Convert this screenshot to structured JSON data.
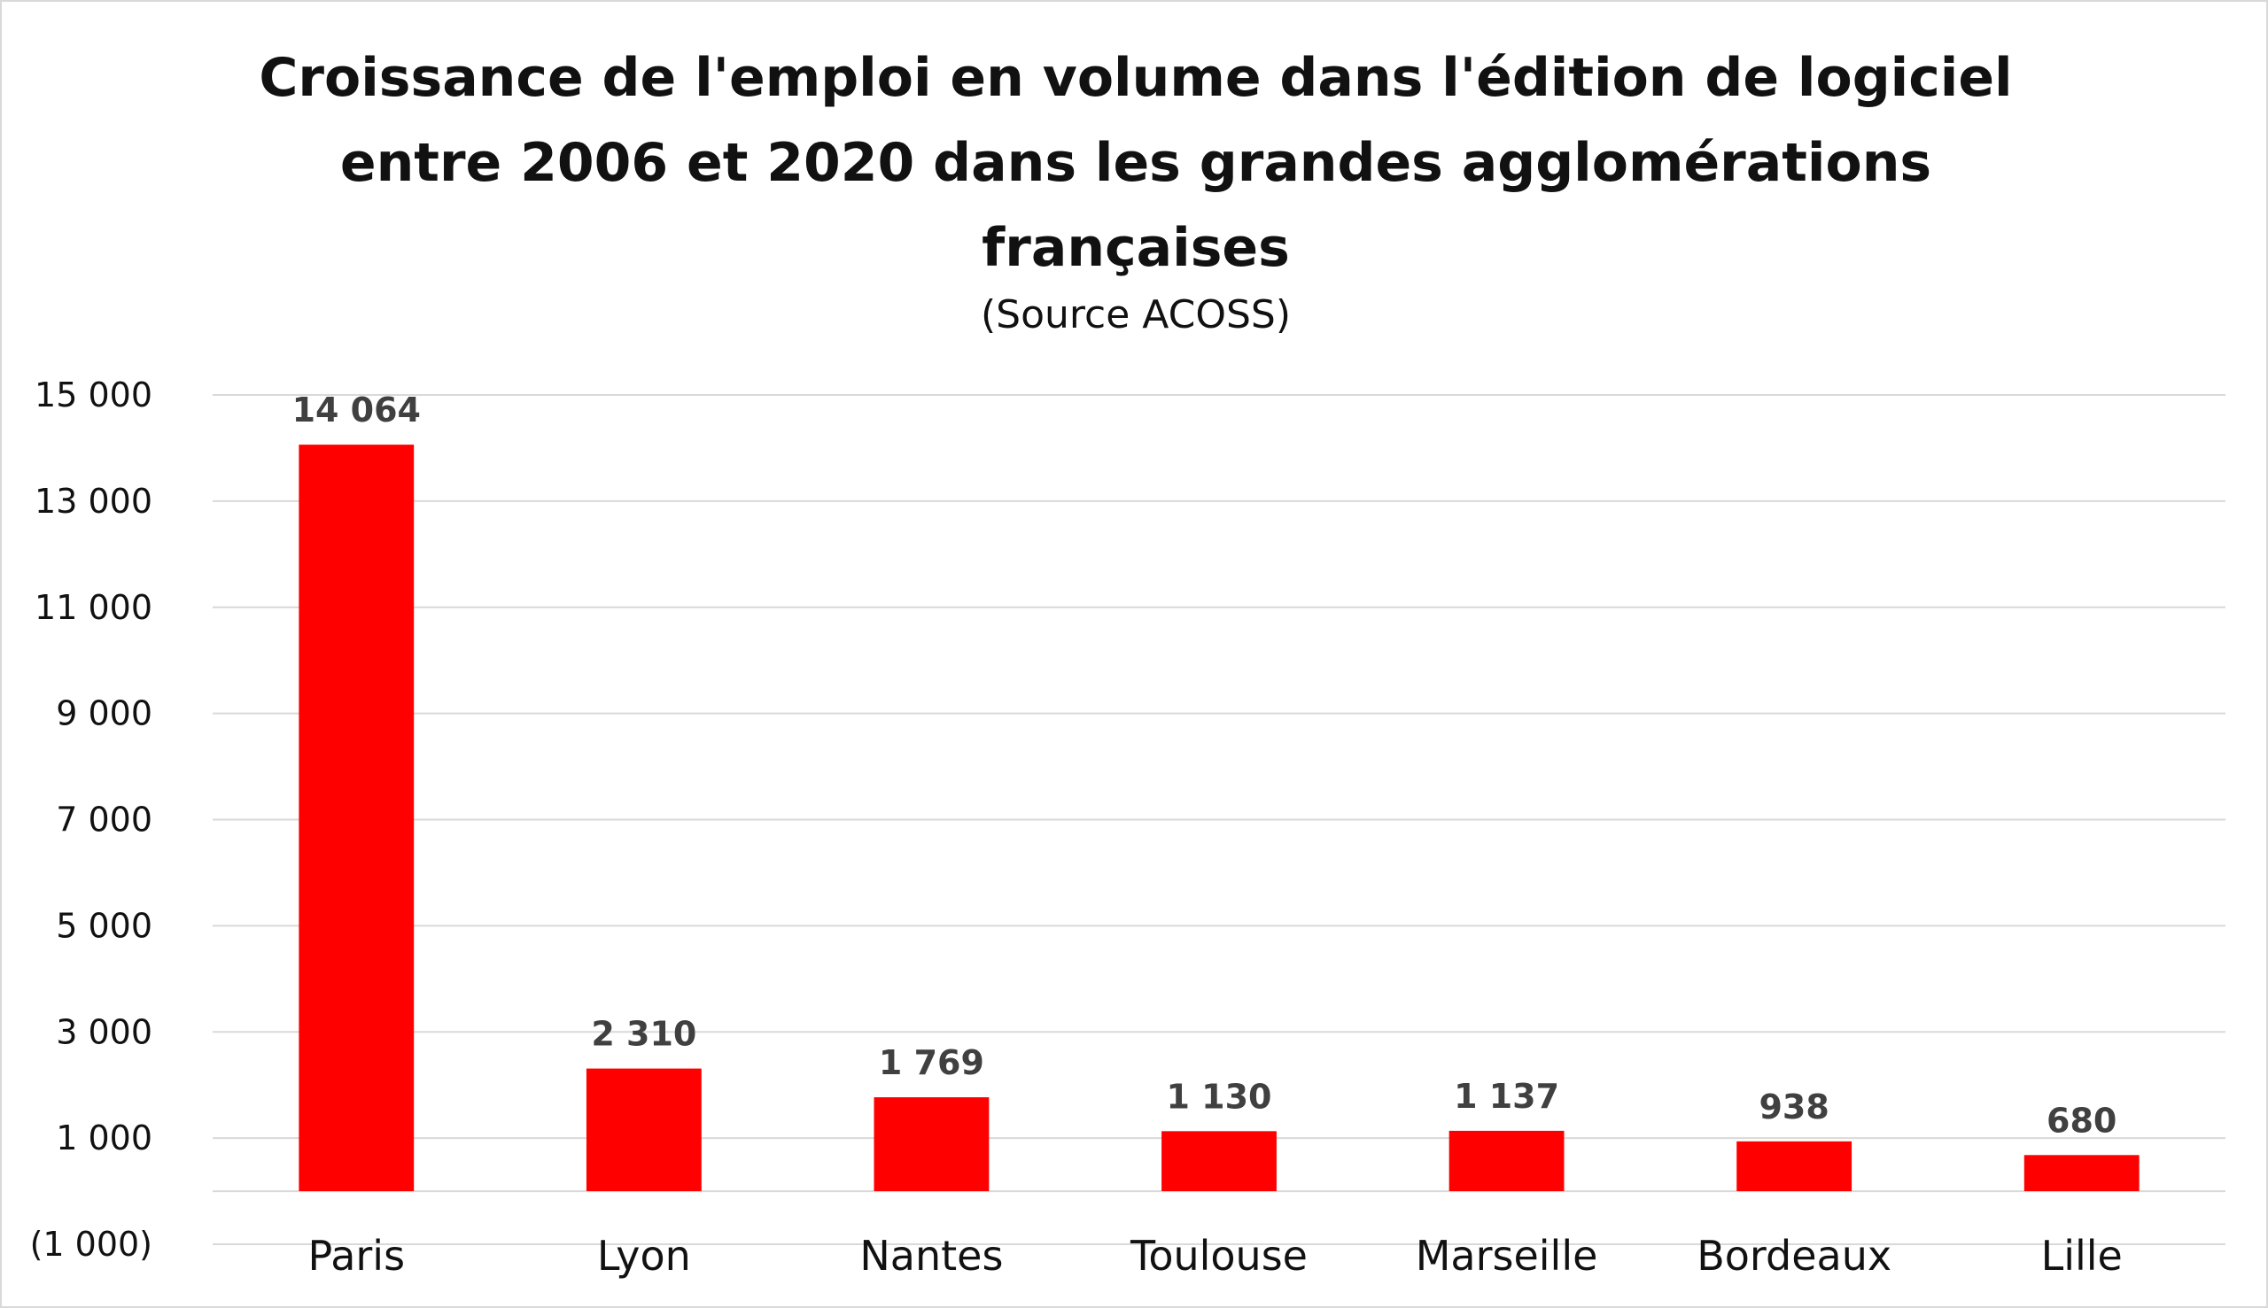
{
  "chart_data": {
    "type": "bar",
    "title": "Croissance de l'emploi en volume dans l'édition de logiciel entre 2006 et 2020 dans les grandes agglomérations françaises",
    "subtitle": "(Source  ACOSS)",
    "xlabel": "",
    "ylabel": "",
    "categories": [
      "Paris",
      "Lyon",
      "Nantes",
      "Toulouse",
      "Marseille",
      "Bordeaux",
      "Lille"
    ],
    "values": [
      14064,
      2310,
      1769,
      1130,
      1137,
      938,
      680
    ],
    "value_labels": [
      "14 064",
      "2 310",
      "1 769",
      "1 130",
      "1 137",
      "938",
      "680"
    ],
    "ylim": [
      -1000,
      15000
    ],
    "yticks": [
      -1000,
      1000,
      3000,
      5000,
      7000,
      9000,
      11000,
      13000,
      15000
    ],
    "ytick_labels": [
      "(1 000)",
      "1 000",
      "3 000",
      "5 000",
      "7 000",
      "9 000",
      "11 000",
      "13 000",
      "15 000"
    ],
    "grid": true,
    "legend": "none",
    "bar_color": "#ff0000"
  }
}
